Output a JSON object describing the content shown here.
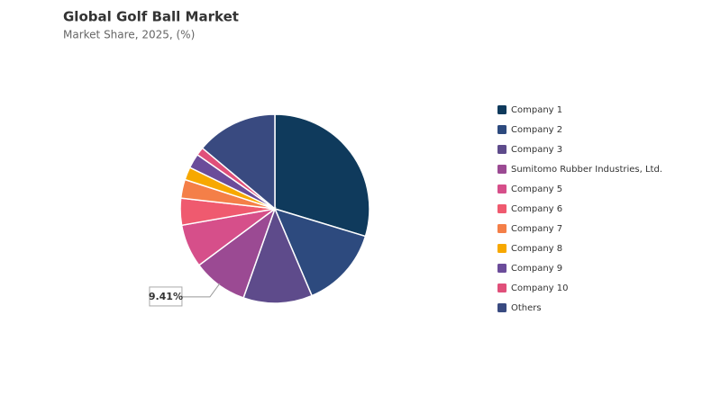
{
  "chart_data": {
    "type": "pie",
    "title": "Global Golf Ball Market",
    "subtitle": "Market Share, 2025, (%)",
    "categories": [
      "Company 1",
      "Company 2",
      "Company 3",
      "Sumitomo Rubber Industries, Ltd.",
      "Company 5",
      "Company 6",
      "Company 7",
      "Company 8",
      "Company 9",
      "Company 10",
      "Others"
    ],
    "values": [
      29.7,
      13.9,
      11.8,
      9.41,
      7.4,
      4.6,
      3.2,
      2.2,
      2.5,
      1.4,
      13.89
    ],
    "value_labels": [
      null,
      null,
      null,
      "9.41%",
      null,
      null,
      null,
      null,
      null,
      null,
      null
    ],
    "colors": [
      "#0f3a5c",
      "#2d4a7e",
      "#5e4b8b",
      "#9b4a93",
      "#d64f8a",
      "#ef5a6f",
      "#f47f48",
      "#f7a800",
      "#6b4c9a",
      "#e0507a",
      "#394a80"
    ],
    "legend": "right"
  }
}
